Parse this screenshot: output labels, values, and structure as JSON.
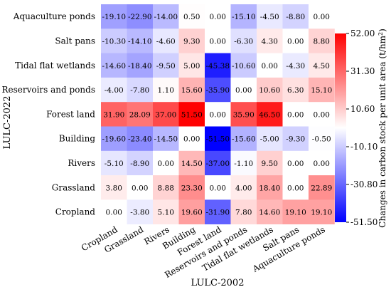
{
  "chart_data": {
    "type": "heatmap",
    "xlabel": "LULC-2002",
    "ylabel": "LULC-2022",
    "x_categories": [
      "Cropland",
      "Grassland",
      "Rivers",
      "Building",
      "Forest land",
      "Reservoirs and ponds",
      "Tidal flat wetlands",
      "Salt pans",
      "Aquaculture ponds"
    ],
    "y_categories": [
      "Aquaculture ponds",
      "Salt pans",
      "Tidal flat wetlands",
      "Reservoirs and ponds",
      "Forest land",
      "Building",
      "Rivers",
      "Grassland",
      "Cropland"
    ],
    "values": [
      [
        -19.1,
        -22.9,
        -14.0,
        0.5,
        0.0,
        -15.1,
        -4.5,
        -8.8,
        0.0
      ],
      [
        -10.3,
        -14.1,
        -4.6,
        9.3,
        0.0,
        -6.3,
        4.3,
        0.0,
        8.8
      ],
      [
        -14.6,
        -18.4,
        -9.5,
        5.0,
        -45.38,
        -10.6,
        0.0,
        -4.3,
        4.5
      ],
      [
        -4.0,
        -7.8,
        1.1,
        15.6,
        -35.9,
        0.0,
        10.6,
        6.3,
        15.1
      ],
      [
        31.9,
        28.09,
        37.0,
        51.5,
        0.0,
        35.9,
        46.5,
        0.0,
        0.0
      ],
      [
        -19.6,
        -23.4,
        -14.5,
        0.0,
        -51.5,
        -15.6,
        -5.0,
        -9.3,
        -0.5
      ],
      [
        -5.1,
        -8.9,
        0.0,
        14.5,
        -37.0,
        -1.1,
        9.5,
        0.0,
        0.0
      ],
      [
        3.8,
        0.0,
        8.88,
        23.3,
        0.0,
        4.0,
        18.4,
        0.0,
        22.89
      ],
      [
        0.0,
        -3.8,
        5.1,
        19.6,
        -31.9,
        7.8,
        14.6,
        19.1,
        19.1
      ]
    ],
    "value_range": [
      -51.5,
      52.0
    ],
    "colormap": {
      "low": "#0000ff",
      "mid": "#ffffff",
      "high": "#ff0000"
    },
    "colorbar": {
      "label_text": "Changes in carbon stock per unit area (t/hm",
      "label_sup": "2",
      "label_close": ")",
      "ticks": [
        52.0,
        31.3,
        10.6,
        -10.1,
        -30.8,
        -51.5
      ]
    }
  }
}
